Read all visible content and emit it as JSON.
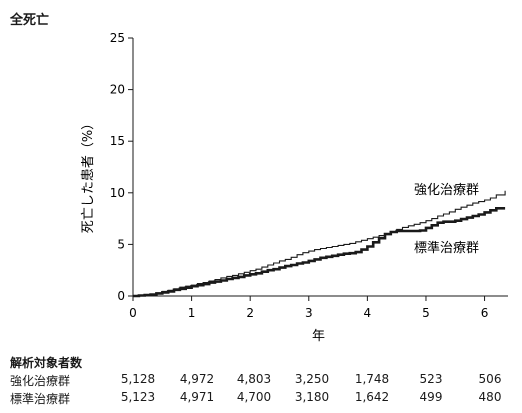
{
  "chart_data": {
    "type": "line",
    "title": "全死亡",
    "xlabel": "年",
    "ylabel": "死亡した患者（%）",
    "xlim": [
      0,
      6.4
    ],
    "ylim": [
      0,
      25
    ],
    "xticks": [
      0,
      1,
      2,
      3,
      4,
      5,
      6
    ],
    "yticks": [
      0,
      5,
      10,
      15,
      20,
      25
    ],
    "grid": false,
    "series": [
      {
        "name": "強化治療群",
        "color": "#1a1a1a",
        "style": "thin",
        "x": [
          0,
          0.1,
          0.2,
          0.3,
          0.4,
          0.5,
          0.6,
          0.7,
          0.8,
          0.9,
          1.0,
          1.1,
          1.2,
          1.3,
          1.4,
          1.5,
          1.6,
          1.7,
          1.8,
          1.9,
          2.0,
          2.1,
          2.2,
          2.3,
          2.4,
          2.5,
          2.6,
          2.7,
          2.8,
          2.9,
          3.0,
          3.1,
          3.2,
          3.3,
          3.4,
          3.5,
          3.6,
          3.7,
          3.8,
          3.9,
          4.0,
          4.1,
          4.2,
          4.3,
          4.4,
          4.5,
          4.6,
          4.7,
          4.8,
          4.9,
          5.0,
          5.1,
          5.2,
          5.3,
          5.4,
          5.5,
          5.6,
          5.7,
          5.8,
          5.9,
          6.0,
          6.1,
          6.2,
          6.35
        ],
        "y": [
          0,
          0.05,
          0.1,
          0.15,
          0.3,
          0.45,
          0.55,
          0.7,
          0.85,
          0.95,
          1.05,
          1.2,
          1.3,
          1.45,
          1.6,
          1.75,
          1.9,
          2.0,
          2.15,
          2.3,
          2.45,
          2.6,
          2.8,
          3.0,
          3.2,
          3.4,
          3.55,
          3.75,
          4.0,
          4.2,
          4.35,
          4.5,
          4.6,
          4.7,
          4.8,
          4.9,
          5.0,
          5.1,
          5.25,
          5.4,
          5.55,
          5.7,
          5.85,
          6.0,
          6.2,
          6.45,
          6.65,
          6.8,
          6.95,
          7.1,
          7.3,
          7.5,
          7.75,
          7.95,
          8.15,
          8.4,
          8.6,
          8.8,
          9.0,
          9.15,
          9.3,
          9.5,
          9.8,
          10.2
        ]
      },
      {
        "name": "標準治療群",
        "color": "#1a1a1a",
        "style": "thick",
        "x": [
          0,
          0.1,
          0.2,
          0.3,
          0.4,
          0.5,
          0.6,
          0.7,
          0.8,
          0.9,
          1.0,
          1.1,
          1.2,
          1.3,
          1.4,
          1.5,
          1.6,
          1.7,
          1.8,
          1.9,
          2.0,
          2.1,
          2.2,
          2.3,
          2.4,
          2.5,
          2.6,
          2.7,
          2.8,
          2.9,
          3.0,
          3.1,
          3.2,
          3.3,
          3.4,
          3.5,
          3.6,
          3.7,
          3.8,
          3.9,
          4.0,
          4.1,
          4.2,
          4.3,
          4.4,
          4.5,
          4.6,
          4.7,
          4.8,
          4.9,
          5.0,
          5.1,
          5.2,
          5.3,
          5.4,
          5.5,
          5.6,
          5.7,
          5.8,
          5.9,
          6.0,
          6.1,
          6.2,
          6.35
        ],
        "y": [
          0,
          0.05,
          0.1,
          0.15,
          0.25,
          0.35,
          0.45,
          0.6,
          0.7,
          0.8,
          0.95,
          1.05,
          1.15,
          1.3,
          1.4,
          1.5,
          1.65,
          1.75,
          1.85,
          2.0,
          2.1,
          2.2,
          2.35,
          2.5,
          2.6,
          2.75,
          2.9,
          3.0,
          3.15,
          3.25,
          3.4,
          3.55,
          3.7,
          3.8,
          3.9,
          4.0,
          4.1,
          4.15,
          4.25,
          4.5,
          4.8,
          5.2,
          5.6,
          6.0,
          6.2,
          6.3,
          6.3,
          6.3,
          6.3,
          6.35,
          6.6,
          6.85,
          7.1,
          7.2,
          7.2,
          7.3,
          7.45,
          7.6,
          7.75,
          7.9,
          8.1,
          8.3,
          8.5,
          8.5
        ]
      }
    ],
    "risk_table": {
      "header": "解析対象者数",
      "x": [
        0,
        1,
        2,
        3,
        4,
        5,
        6
      ],
      "rows": [
        {
          "label": "強化治療群",
          "values": [
            "5,128",
            "4,972",
            "4,803",
            "3,250",
            "1,748",
            "523",
            "506"
          ]
        },
        {
          "label": "標準治療群",
          "values": [
            "5,123",
            "4,971",
            "4,700",
            "3,180",
            "1,642",
            "499",
            "480"
          ]
        }
      ]
    }
  }
}
